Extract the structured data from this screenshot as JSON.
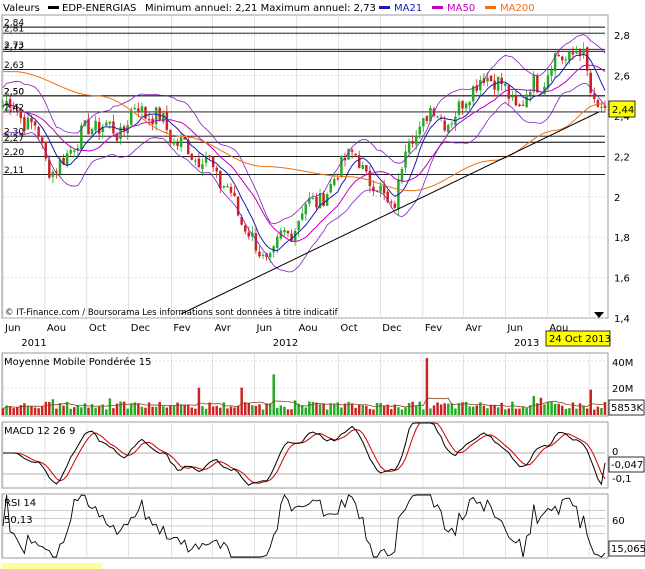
{
  "header": {
    "valeurs_label": "Valeurs",
    "ticker": "EDP-ENERGIAS",
    "min_max": "Minimum annuel: 2,21 Maximum annuel: 2,73",
    "ma21_label": "MA21",
    "ma50_label": "MA50",
    "ma200_label": "MA200"
  },
  "colors": {
    "up_candle": "#22aa22",
    "down_candle": "#cc2222",
    "ma21": "#1a1ab4",
    "ma50": "#c000c0",
    "ma200": "#f07010",
    "bollinger": "#8020c0",
    "trendline": "#000000",
    "price_tag": "#ffff00",
    "date_tag": "#ffff00",
    "grid": "#cfcfcf",
    "level_line": "#000000",
    "macd_line": "#000000",
    "macd_signal": "#cc0000",
    "rsi_line": "#000000",
    "volume_avg": "#8b4513"
  },
  "main_panel": {
    "level_labels": [
      "2,84",
      "2,81",
      "2,73",
      "2,72",
      "2,63",
      "2,50",
      "2,50",
      "2,42",
      "2,30",
      "2,27",
      "2,20",
      "2,11"
    ],
    "yticks": [
      "2,8",
      "2,6",
      "2,4",
      "2,2",
      "2",
      "1,8",
      "1,6",
      "1,4"
    ],
    "price_tag": "2,44",
    "credit": "© IT-Finance.com / Boursorama Les informations sont données à titre indicatif"
  },
  "x_axis": {
    "months": [
      "Jun",
      "Aou",
      "Oct",
      "Dec",
      "Fev",
      "Avr",
      "Jun",
      "Aou",
      "Oct",
      "Dec",
      "Fev",
      "Avr",
      "Jun",
      "Aou"
    ],
    "years": [
      "2011",
      "2012",
      "2013"
    ],
    "date_tag": "24 Oct 2013"
  },
  "volume_panel": {
    "title": "Moyenne Mobile Pondérée 15",
    "yticks": [
      "40M",
      "20M"
    ],
    "value_tag": "5853K"
  },
  "macd_panel": {
    "title": "MACD 12 26 9",
    "yticks": [
      "0",
      "-0,1"
    ],
    "value_tag": "-0,047"
  },
  "rsi_panel": {
    "title": "RSI 14",
    "top_value": "50,13",
    "yticks": [
      "60"
    ],
    "value_tag": "15,065"
  },
  "chart_data": {
    "type": "candlestick",
    "title": "EDP-ENERGIAS",
    "series_names": [
      "MA21",
      "MA50",
      "MA200"
    ],
    "date_range": [
      "2011-06",
      "2013-10-24"
    ],
    "ylim": [
      1.4,
      2.9
    ],
    "horizontal_levels": [
      2.84,
      2.81,
      2.73,
      2.72,
      2.63,
      2.5,
      2.5,
      2.42,
      2.3,
      2.27,
      2.2,
      2.11
    ],
    "close_keypoints": [
      {
        "date": "2011-06",
        "close": 2.45
      },
      {
        "date": "2011-07",
        "close": 2.34
      },
      {
        "date": "2011-08",
        "close": 2.12
      },
      {
        "date": "2011-09",
        "close": 2.28
      },
      {
        "date": "2011-10",
        "close": 2.36
      },
      {
        "date": "2011-11",
        "close": 2.32
      },
      {
        "date": "2011-12",
        "close": 2.44
      },
      {
        "date": "2012-01",
        "close": 2.38
      },
      {
        "date": "2012-02",
        "close": 2.25
      },
      {
        "date": "2012-03",
        "close": 2.2
      },
      {
        "date": "2012-04",
        "close": 2.08
      },
      {
        "date": "2012-05",
        "close": 1.88
      },
      {
        "date": "2012-06",
        "close": 1.68
      },
      {
        "date": "2012-07",
        "close": 1.8
      },
      {
        "date": "2012-08",
        "close": 1.95
      },
      {
        "date": "2012-09",
        "close": 2.02
      },
      {
        "date": "2012-10",
        "close": 2.22
      },
      {
        "date": "2012-11",
        "close": 2.1
      },
      {
        "date": "2012-12",
        "close": 1.95
      },
      {
        "date": "2013-01",
        "close": 2.3
      },
      {
        "date": "2013-02",
        "close": 2.42
      },
      {
        "date": "2013-03",
        "close": 2.38
      },
      {
        "date": "2013-04",
        "close": 2.55
      },
      {
        "date": "2013-05",
        "close": 2.6
      },
      {
        "date": "2013-06",
        "close": 2.45
      },
      {
        "date": "2013-07",
        "close": 2.55
      },
      {
        "date": "2013-08",
        "close": 2.68
      },
      {
        "date": "2013-09",
        "close": 2.72
      },
      {
        "date": "2013-10",
        "close": 2.44
      }
    ],
    "ma200_keypoints": [
      {
        "date": "2011-06",
        "value": 2.62
      },
      {
        "date": "2011-10",
        "value": 2.5
      },
      {
        "date": "2012-02",
        "value": 2.3
      },
      {
        "date": "2012-06",
        "value": 2.15
      },
      {
        "date": "2012-10",
        "value": 2.1
      },
      {
        "date": "2013-01",
        "value": 2.03
      },
      {
        "date": "2013-05",
        "value": 2.18
      },
      {
        "date": "2013-08",
        "value": 2.33
      },
      {
        "date": "2013-10",
        "value": 2.46
      }
    ],
    "trendline": [
      {
        "date": "2012-02",
        "value": 1.42
      },
      {
        "date": "2013-10",
        "value": 2.42
      }
    ],
    "volume_last": "5853K",
    "macd_last": -0.047,
    "rsi_last": 15.065
  }
}
